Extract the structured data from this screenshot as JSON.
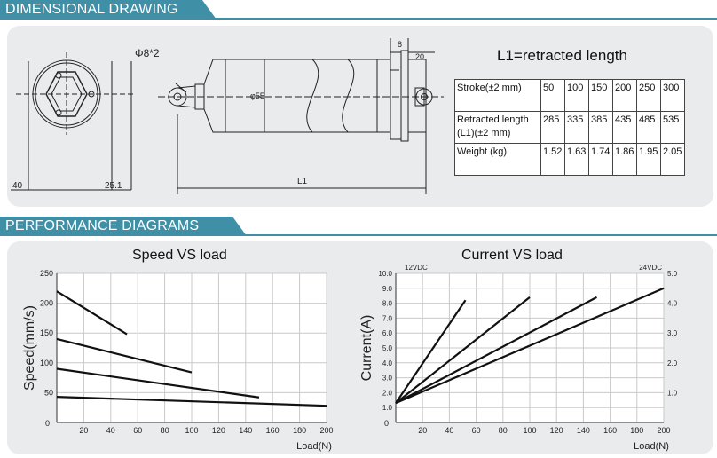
{
  "headers": {
    "dimensional": "DIMENSIONAL DRAWING",
    "performance": "PERFORMANCE DIAGRAMS"
  },
  "drawing": {
    "phi_label": "Φ8*2",
    "dim_8": "8",
    "dim_20": "20",
    "dim_55": "φ55",
    "dim_40": "40",
    "dim_25": "25.1",
    "dim_L1": "L1"
  },
  "specs": {
    "title": "L1=retracted length",
    "rows": [
      {
        "label": "Stroke(±2 mm)",
        "values": [
          "50",
          "100",
          "150",
          "200",
          "250",
          "300"
        ]
      },
      {
        "label": "Retracted length (L1)(±2 mm)",
        "values": [
          "285",
          "335",
          "385",
          "435",
          "485",
          "535"
        ]
      },
      {
        "label": "Weight (kg)",
        "values": [
          "1.52",
          "1.63",
          "1.74",
          "1.86",
          "1.95",
          "2.05"
        ]
      }
    ]
  },
  "chart_data": [
    {
      "type": "line",
      "title": "Speed VS load",
      "xlabel": "Load(N)",
      "ylabel": "Speed(mm/s)",
      "xlim": [
        0,
        200
      ],
      "ylim": [
        0,
        250
      ],
      "x_ticks": [
        "20",
        "40",
        "60",
        "80",
        "100",
        "120",
        "140",
        "160",
        "180",
        "200"
      ],
      "y_ticks": [
        "0",
        "50",
        "100",
        "150",
        "200",
        "250"
      ],
      "series": [
        {
          "x": [
            0,
            52
          ],
          "y": [
            220,
            148
          ]
        },
        {
          "x": [
            0,
            100
          ],
          "y": [
            140,
            84
          ]
        },
        {
          "x": [
            0,
            150
          ],
          "y": [
            90,
            42
          ]
        },
        {
          "x": [
            0,
            200
          ],
          "y": [
            43,
            28
          ]
        }
      ]
    },
    {
      "type": "line",
      "title": "Current VS load",
      "xlabel": "Load(N)",
      "ylabel": "Current(A)",
      "xlim": [
        0,
        200
      ],
      "ylim": [
        0,
        10
      ],
      "y2lim": [
        0,
        5
      ],
      "left_axis_label": "12VDC",
      "right_axis_label": "24VDC",
      "x_ticks": [
        "20",
        "40",
        "60",
        "80",
        "100",
        "120",
        "140",
        "160",
        "180",
        "200"
      ],
      "y_ticks": [
        "0",
        "1.0",
        "2.0",
        "3.0",
        "4.0",
        "5.0",
        "6.0",
        "7.0",
        "8.0",
        "9.0",
        "10.0"
      ],
      "y2_ticks": [
        "1.0",
        "2.0",
        "3.0",
        "4.0",
        "5.0"
      ],
      "series": [
        {
          "x": [
            0,
            52
          ],
          "y": [
            1.3,
            8.2
          ]
        },
        {
          "x": [
            0,
            100
          ],
          "y": [
            1.3,
            8.4
          ]
        },
        {
          "x": [
            0,
            150
          ],
          "y": [
            1.3,
            8.4
          ]
        },
        {
          "x": [
            0,
            200
          ],
          "y": [
            1.3,
            9.0
          ]
        }
      ]
    }
  ]
}
